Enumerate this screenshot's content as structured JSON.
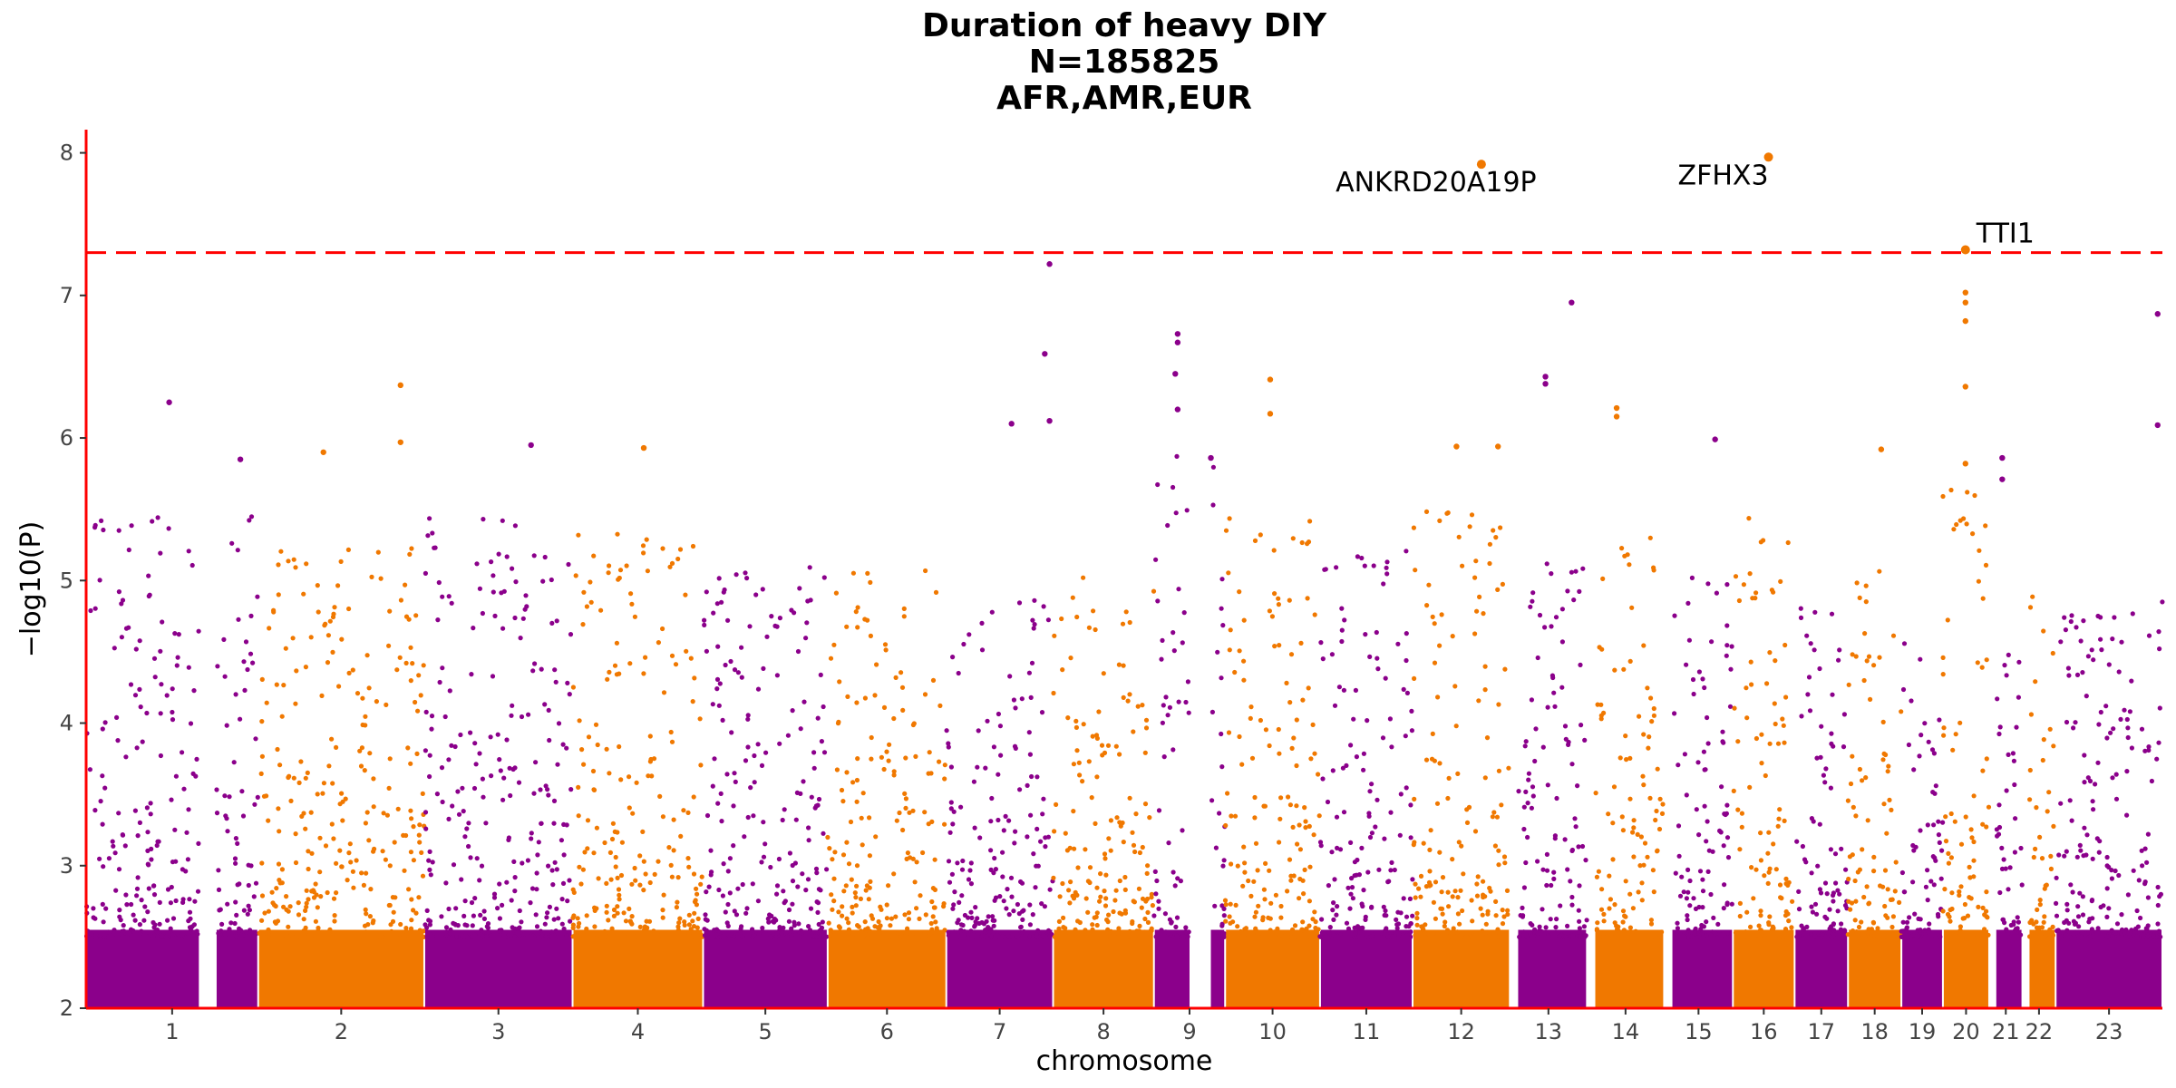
{
  "chart_data": {
    "type": "scatter",
    "title_lines": [
      "Duration of heavy DIY",
      "N=185825",
      "AFR,AMR,EUR"
    ],
    "xlabel": "chromosome",
    "ylabel": "−log10(P)",
    "ylim": [
      2,
      8.15
    ],
    "yticks": [
      2,
      3,
      4,
      5,
      6,
      7,
      8
    ],
    "threshold": 7.3,
    "colors": {
      "odd": "#8b008b",
      "even": "#f07800",
      "threshold": "#ff0000",
      "axis": "#ff0000"
    },
    "chromosomes": [
      {
        "label": "1",
        "start": 0,
        "end": 145,
        "peak": 5.4,
        "gap": [
          95,
          110
        ]
      },
      {
        "label": "2",
        "start": 145,
        "end": 285,
        "peak": 5.1
      },
      {
        "label": "3",
        "start": 285,
        "end": 410,
        "peak": 5.3
      },
      {
        "label": "4",
        "start": 410,
        "end": 520,
        "peak": 5.2
      },
      {
        "label": "5",
        "start": 520,
        "end": 625,
        "peak": 5.0
      },
      {
        "label": "6",
        "start": 625,
        "end": 725,
        "peak": 5.0
      },
      {
        "label": "7",
        "start": 725,
        "end": 815,
        "peak": 4.8
      },
      {
        "label": "8",
        "start": 815,
        "end": 900,
        "peak": 4.9
      },
      {
        "label": "9",
        "start": 900,
        "end": 960,
        "peak": 5.8,
        "gap": [
          930,
          948
        ]
      },
      {
        "label": "10",
        "start": 960,
        "end": 1040,
        "peak": 5.3
      },
      {
        "label": "11",
        "start": 1040,
        "end": 1118,
        "peak": 5.1
      },
      {
        "label": "12",
        "start": 1118,
        "end": 1200,
        "peak": 5.4
      },
      {
        "label": "13",
        "start": 1200,
        "end": 1265,
        "peak": 5.0,
        "gap": [
          1200,
          1207
        ]
      },
      {
        "label": "14",
        "start": 1265,
        "end": 1330,
        "peak": 5.2,
        "gap": [
          1265,
          1272
        ]
      },
      {
        "label": "15",
        "start": 1330,
        "end": 1388,
        "peak": 5.0,
        "gap": [
          1330,
          1337
        ]
      },
      {
        "label": "16",
        "start": 1388,
        "end": 1440,
        "peak": 5.3
      },
      {
        "label": "17",
        "start": 1440,
        "end": 1485,
        "peak": 4.7
      },
      {
        "label": "18",
        "start": 1485,
        "end": 1530,
        "peak": 5.0
      },
      {
        "label": "19",
        "start": 1530,
        "end": 1565,
        "peak": 4.6
      },
      {
        "label": "20",
        "start": 1565,
        "end": 1604,
        "peak": 5.5
      },
      {
        "label": "21",
        "start": 1604,
        "end": 1632,
        "peak": 4.5,
        "gap": [
          1604,
          1610
        ]
      },
      {
        "label": "22",
        "start": 1632,
        "end": 1660,
        "peak": 5.0,
        "gap": [
          1632,
          1638
        ]
      },
      {
        "label": "23",
        "start": 1660,
        "end": 1750,
        "peak": 4.8
      }
    ],
    "notable_points": [
      {
        "pos": 70,
        "y": 6.25
      },
      {
        "pos": 130,
        "y": 5.85
      },
      {
        "pos": 200,
        "y": 5.9
      },
      {
        "pos": 265,
        "y": 6.37
      },
      {
        "pos": 265,
        "y": 5.97
      },
      {
        "pos": 375,
        "y": 5.95
      },
      {
        "pos": 470,
        "y": 5.93
      },
      {
        "pos": 780,
        "y": 6.1
      },
      {
        "pos": 812,
        "y": 7.22
      },
      {
        "pos": 808,
        "y": 6.59
      },
      {
        "pos": 812,
        "y": 6.12
      },
      {
        "pos": 920,
        "y": 6.73
      },
      {
        "pos": 920,
        "y": 6.67
      },
      {
        "pos": 918,
        "y": 6.45
      },
      {
        "pos": 920,
        "y": 6.2
      },
      {
        "pos": 948,
        "y": 5.86
      },
      {
        "pos": 998,
        "y": 6.41
      },
      {
        "pos": 998,
        "y": 6.17
      },
      {
        "pos": 1155,
        "y": 5.94
      },
      {
        "pos": 1190,
        "y": 5.94
      },
      {
        "pos": 1230,
        "y": 6.43
      },
      {
        "pos": 1230,
        "y": 6.38
      },
      {
        "pos": 1252,
        "y": 6.95
      },
      {
        "pos": 1290,
        "y": 6.21
      },
      {
        "pos": 1290,
        "y": 6.15
      },
      {
        "pos": 1373,
        "y": 5.99
      },
      {
        "pos": 1513,
        "y": 5.92
      },
      {
        "pos": 1584,
        "y": 7.02
      },
      {
        "pos": 1584,
        "y": 6.95
      },
      {
        "pos": 1584,
        "y": 6.82
      },
      {
        "pos": 1584,
        "y": 6.36
      },
      {
        "pos": 1584,
        "y": 5.82
      },
      {
        "pos": 1615,
        "y": 5.86
      },
      {
        "pos": 1615,
        "y": 5.71
      },
      {
        "pos": 1746,
        "y": 6.87
      },
      {
        "pos": 1746,
        "y": 6.09
      }
    ],
    "annotated_points": [
      {
        "label": "ANKRD20A19P",
        "pos": 1176,
        "y": 7.92
      },
      {
        "label": "ZFHX3",
        "pos": 1418,
        "y": 7.97
      },
      {
        "label": "TTI1",
        "pos": 1584,
        "y": 7.32
      }
    ]
  }
}
